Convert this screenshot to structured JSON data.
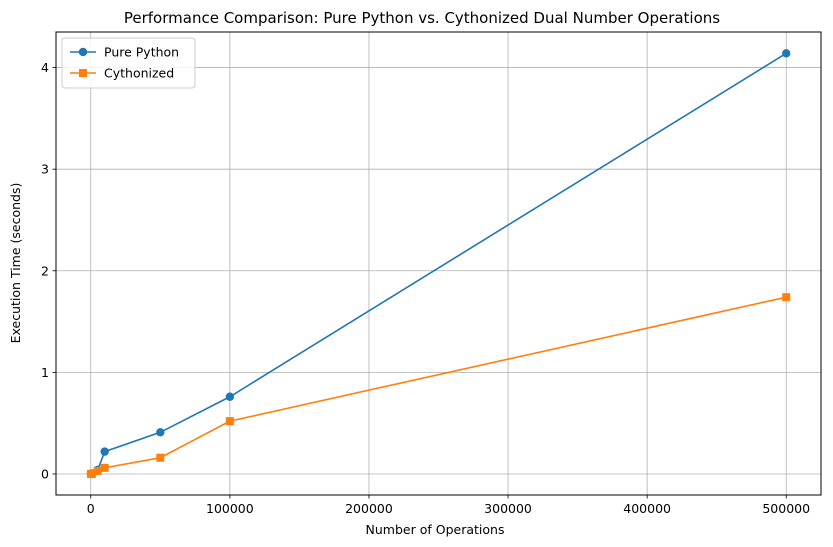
{
  "chart_data": {
    "type": "line",
    "title": "Performance Comparison: Pure Python vs. Cythonized Dual Number Operations",
    "xlabel": "Number of Operations",
    "ylabel": "Execution Time (seconds)",
    "xlim": [
      -25000,
      525000
    ],
    "ylim": [
      -0.207,
      4.35
    ],
    "xticks": [
      0,
      100000,
      200000,
      300000,
      400000,
      500000
    ],
    "yticks": [
      0,
      1,
      2,
      3,
      4
    ],
    "xtick_labels": [
      "0",
      "100000",
      "200000",
      "300000",
      "400000",
      "500000"
    ],
    "ytick_labels": [
      "0",
      "1",
      "2",
      "3",
      "4"
    ],
    "grid": true,
    "legend_position": "top-left",
    "series": [
      {
        "name": "Pure Python",
        "color": "#1f77b4",
        "marker": "circle",
        "x": [
          100,
          1000,
          5000,
          10000,
          50000,
          100000,
          500000
        ],
        "y": [
          0.0,
          0.005,
          0.04,
          0.22,
          0.41,
          0.76,
          4.14
        ]
      },
      {
        "name": "Cythonized",
        "color": "#ff7f0e",
        "marker": "square",
        "x": [
          100,
          1000,
          5000,
          10000,
          50000,
          100000,
          500000
        ],
        "y": [
          0.0,
          0.003,
          0.03,
          0.06,
          0.16,
          0.52,
          1.74
        ]
      }
    ]
  }
}
